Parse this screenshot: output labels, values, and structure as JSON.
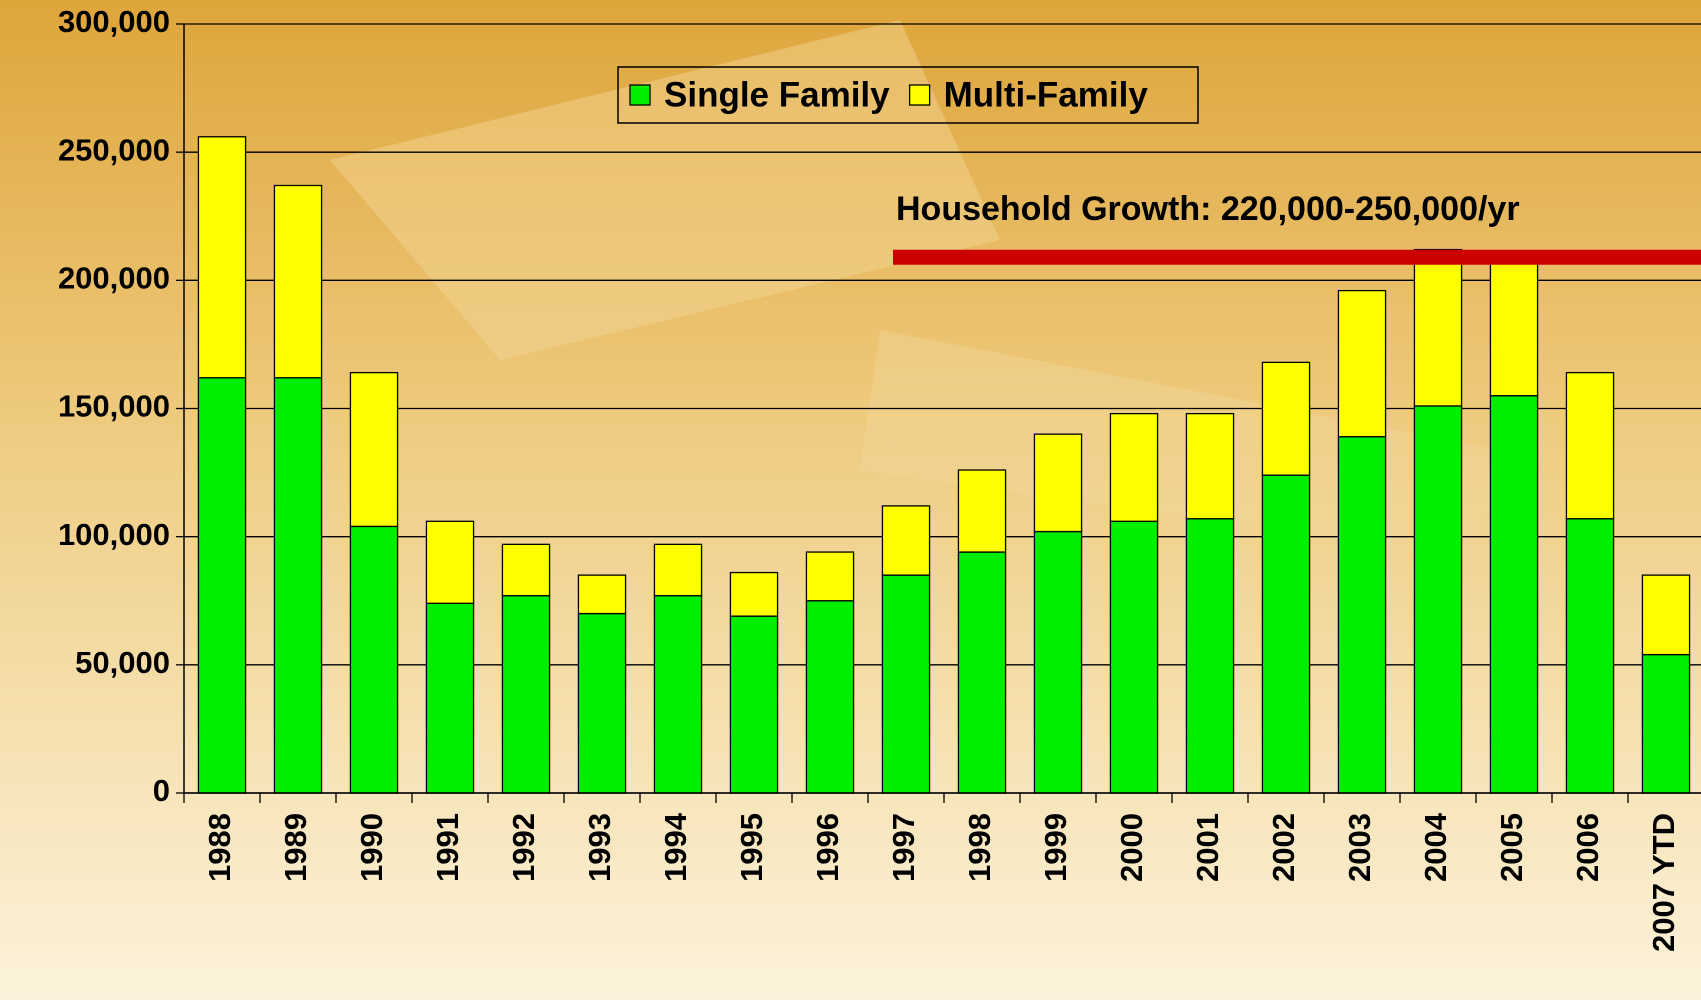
{
  "chart_data": {
    "type": "stacked_bar",
    "categories": [
      "1988",
      "1989",
      "1990",
      "1991",
      "1992",
      "1993",
      "1994",
      "1995",
      "1996",
      "1997",
      "1998",
      "1999",
      "2000",
      "2001",
      "2002",
      "2003",
      "2004",
      "2005",
      "2006",
      "2007 YTD"
    ],
    "series": [
      {
        "name": "Single Family",
        "color": "#00ee00",
        "values": [
          162000,
          162000,
          104000,
          74000,
          77000,
          70000,
          77000,
          69000,
          75000,
          85000,
          94000,
          102000,
          106000,
          107000,
          124000,
          139000,
          151000,
          155000,
          107000,
          54000
        ]
      },
      {
        "name": "Multi-Family",
        "color": "#ffff00",
        "values": [
          94000,
          75000,
          60000,
          32000,
          20000,
          15000,
          20000,
          17000,
          19000,
          27000,
          32000,
          38000,
          42000,
          41000,
          44000,
          57000,
          61000,
          52000,
          57000,
          31000
        ]
      }
    ],
    "ylim": [
      0,
      300000
    ],
    "yticks": [
      {
        "value": 0,
        "label": "0"
      },
      {
        "value": 50000,
        "label": "50,000"
      },
      {
        "value": 100000,
        "label": "100,000"
      },
      {
        "value": 150000,
        "label": "150,000"
      },
      {
        "value": 200000,
        "label": "200,000"
      },
      {
        "value": 250000,
        "label": "250,000"
      },
      {
        "value": 300000,
        "label": "300,000"
      }
    ],
    "grid": true,
    "legend": "top",
    "reference_line": {
      "value": 209000,
      "label": "Household Growth: 220,000-250,000/yr",
      "color": "#cc0000"
    }
  }
}
